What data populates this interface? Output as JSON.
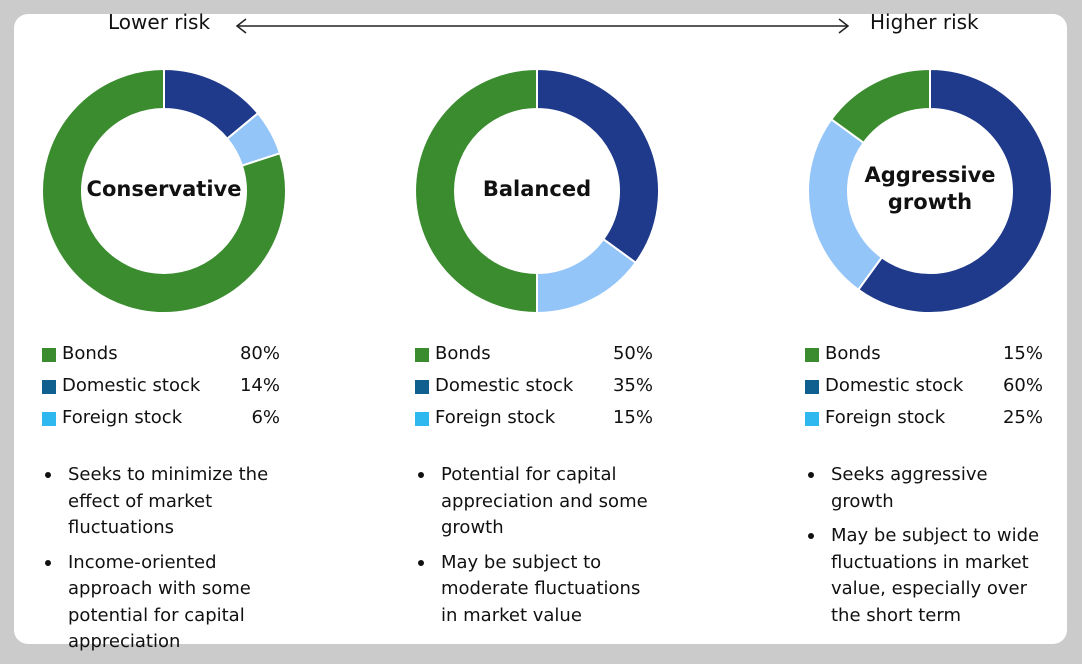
{
  "header": {
    "low_label": "Lower risk",
    "high_label": "Higher risk"
  },
  "colors": {
    "bonds": "#3a8c2f",
    "domestic_stock": "#1f3a8a",
    "foreign_stock": "#94c5f8",
    "legend_bonds": "#3a8c2f",
    "legend_domestic_stock": "#0f5f8f",
    "legend_foreign_stock": "#2fb7f0"
  },
  "chart_data": [
    {
      "type": "pie",
      "title": "Conservative",
      "categories": [
        "Bonds",
        "Domestic stock",
        "Foreign stock"
      ],
      "values": [
        80,
        14,
        6
      ],
      "value_labels": [
        "80%",
        "14%",
        "6%"
      ],
      "bullets": [
        "Seeks to minimize the effect of market fluctuations",
        "Income-oriented approach with some potential for capital appreciation"
      ]
    },
    {
      "type": "pie",
      "title": "Balanced",
      "categories": [
        "Bonds",
        "Domestic stock",
        "Foreign stock"
      ],
      "values": [
        50,
        35,
        15
      ],
      "value_labels": [
        "50%",
        "35%",
        "15%"
      ],
      "bullets": [
        "Potential for capital appreciation and some growth",
        "May be subject to moderate fluctuations in market value"
      ]
    },
    {
      "type": "pie",
      "title": "Aggressive growth",
      "categories": [
        "Bonds",
        "Domestic stock",
        "Foreign stock"
      ],
      "values": [
        15,
        60,
        25
      ],
      "value_labels": [
        "15%",
        "60%",
        "25%"
      ],
      "bullets": [
        "Seeks aggressive growth",
        "May be subject to wide fluctuations in market value, especially over the short term"
      ]
    }
  ]
}
